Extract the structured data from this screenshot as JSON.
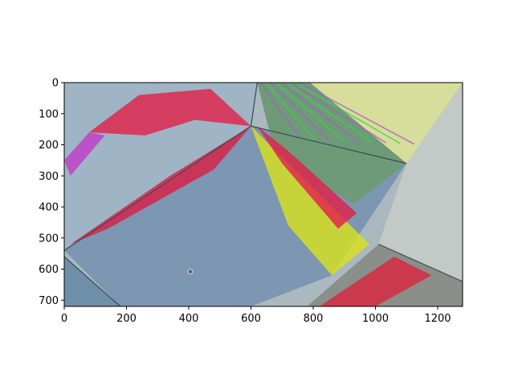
{
  "chart_data": {
    "type": "heatmap",
    "title": "",
    "xlabel": "",
    "ylabel": "",
    "xlim": [
      0,
      1280
    ],
    "ylim": [
      720,
      0
    ],
    "y_inverted": true,
    "grid": false,
    "x_ticks": [
      {
        "value": 0,
        "label": "0"
      },
      {
        "value": 200,
        "label": "200"
      },
      {
        "value": 400,
        "label": "400"
      },
      {
        "value": 600,
        "label": "600"
      },
      {
        "value": 800,
        "label": "800"
      },
      {
        "value": 1000,
        "label": "1000"
      },
      {
        "value": 1200,
        "label": "1200"
      }
    ],
    "y_ticks": [
      {
        "value": 0,
        "label": "0"
      },
      {
        "value": 100,
        "label": "100"
      },
      {
        "value": 200,
        "label": "200"
      },
      {
        "value": 300,
        "label": "300"
      },
      {
        "value": 400,
        "label": "400"
      },
      {
        "value": 500,
        "label": "500"
      },
      {
        "value": 600,
        "label": "600"
      },
      {
        "value": 700,
        "label": "700"
      }
    ],
    "image_regions": [
      {
        "name": "upper-left-arc",
        "color": "#9fb4c4",
        "points": [
          [
            0,
            0
          ],
          [
            620,
            0
          ],
          [
            600,
            140
          ],
          [
            0,
            540
          ]
        ]
      },
      {
        "name": "large-tile",
        "color": "#7d96b2",
        "points": [
          [
            0,
            540
          ],
          [
            600,
            140
          ],
          [
            1100,
            260
          ],
          [
            860,
            620
          ],
          [
            600,
            720
          ],
          [
            180,
            720
          ]
        ]
      },
      {
        "name": "striped-tile",
        "color": "#6f9a78",
        "points": [
          [
            620,
            0
          ],
          [
            790,
            0
          ],
          [
            1100,
            260
          ],
          [
            930,
            390
          ],
          [
            680,
            240
          ]
        ]
      },
      {
        "name": "lower-left-tile",
        "color": "#6f8ea8",
        "points": [
          [
            0,
            560
          ],
          [
            180,
            720
          ],
          [
            0,
            720
          ]
        ]
      },
      {
        "name": "lower-right-tile",
        "color": "#8a8f8a",
        "points": [
          [
            1010,
            520
          ],
          [
            1280,
            640
          ],
          [
            1280,
            720
          ],
          [
            780,
            720
          ]
        ]
      },
      {
        "name": "right-floor",
        "color": "#c3c9c7",
        "points": [
          [
            1100,
            260
          ],
          [
            1280,
            0
          ],
          [
            1280,
            640
          ],
          [
            1010,
            520
          ]
        ]
      },
      {
        "name": "top-right-floor",
        "color": "#d7dd9a",
        "points": [
          [
            790,
            0
          ],
          [
            1280,
            0
          ],
          [
            1100,
            260
          ]
        ]
      }
    ],
    "highlight_bands": [
      {
        "name": "red-band-left",
        "color": "#e0224a",
        "points": [
          [
            80,
            160
          ],
          [
            240,
            40
          ],
          [
            470,
            20
          ],
          [
            600,
            140
          ],
          [
            420,
            120
          ],
          [
            260,
            170
          ]
        ]
      },
      {
        "name": "red-band-mid",
        "color": "#d92044",
        "points": [
          [
            20,
            520
          ],
          [
            340,
            300
          ],
          [
            600,
            140
          ],
          [
            480,
            280
          ],
          [
            140,
            470
          ]
        ]
      },
      {
        "name": "yellow-band",
        "color": "#d8e21e",
        "points": [
          [
            600,
            140
          ],
          [
            760,
            300
          ],
          [
            980,
            520
          ],
          [
            860,
            620
          ],
          [
            720,
            460
          ]
        ]
      },
      {
        "name": "red-band-right",
        "color": "#e0224a",
        "points": [
          [
            620,
            140
          ],
          [
            720,
            220
          ],
          [
            940,
            420
          ],
          [
            880,
            470
          ],
          [
            700,
            260
          ]
        ]
      },
      {
        "name": "magenta-edge",
        "color": "#c23cc8",
        "points": [
          [
            0,
            250
          ],
          [
            80,
            160
          ],
          [
            130,
            170
          ],
          [
            20,
            300
          ]
        ]
      },
      {
        "name": "red-lower-right",
        "color": "#d8263e",
        "points": [
          [
            820,
            720
          ],
          [
            1060,
            560
          ],
          [
            1180,
            620
          ],
          [
            1000,
            720
          ]
        ]
      }
    ],
    "marker": {
      "name": "small-ring",
      "x": 405,
      "y": 608
    }
  }
}
